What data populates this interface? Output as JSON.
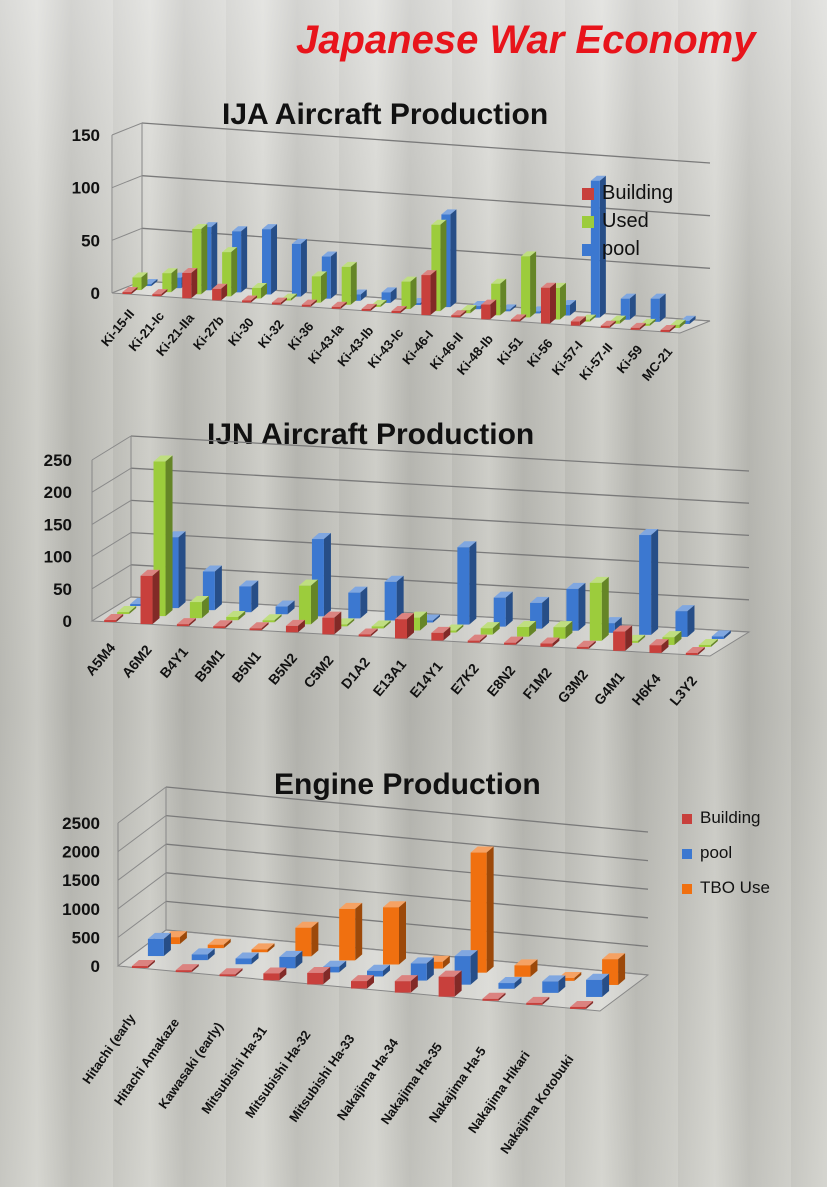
{
  "page_title": "Japanese War Economy",
  "colors": {
    "building": "#c8403c",
    "used": "#9ccc3c",
    "pool": "#3c78d0",
    "tbo": "#f07010",
    "title": "#e8141b"
  },
  "chart_data": [
    {
      "type": "bar",
      "title": "IJA Aircraft Production",
      "categories": [
        "Ki-15-II",
        "Ki-21-Ic",
        "Ki-21-IIa",
        "Ki-27b",
        "Ki-30",
        "Ki-32",
        "Ki-36",
        "Ki-43-Ia",
        "Ki-43-Ib",
        "Ki-43-Ic",
        "Ki-46-I",
        "Ki-46-II",
        "Ki-48-Ib",
        "Ki-51",
        "Ki-56",
        "Ki-57-I",
        "Ki-57-II",
        "Ki-59",
        "MC-21"
      ],
      "series": [
        {
          "name": "Building",
          "values": [
            0,
            0,
            24,
            11,
            0,
            0,
            0,
            0,
            0,
            0,
            38,
            0,
            14,
            0,
            34,
            4,
            0,
            0,
            0
          ]
        },
        {
          "name": "Used",
          "values": [
            12,
            18,
            62,
            42,
            10,
            0,
            25,
            36,
            0,
            26,
            82,
            3,
            30,
            58,
            30,
            0,
            3,
            0,
            3
          ]
        },
        {
          "name": "pool",
          "values": [
            0,
            10,
            60,
            58,
            62,
            50,
            40,
            6,
            10,
            0,
            88,
            3,
            0,
            0,
            10,
            130,
            20,
            22,
            3
          ]
        }
      ],
      "ylim": [
        0,
        150
      ],
      "yticks": [
        "150",
        "100",
        "50",
        "0"
      ],
      "legend": "right"
    },
    {
      "type": "bar",
      "title": "IJN Aircraft Production",
      "categories": [
        "A5M4",
        "A6M2",
        "B4Y1",
        "B5M1",
        "B5N1",
        "B5N2",
        "C5M2",
        "D1A2",
        "E13A1",
        "E14Y1",
        "E7K2",
        "E8N2",
        "F1M2",
        "G3M2",
        "G4M1",
        "H6K4",
        "L3Y2"
      ],
      "series": [
        {
          "name": "Building",
          "values": [
            0,
            75,
            0,
            0,
            0,
            10,
            26,
            0,
            30,
            12,
            0,
            0,
            5,
            0,
            30,
            12,
            0
          ]
        },
        {
          "name": "Used",
          "values": [
            0,
            240,
            25,
            5,
            2,
            60,
            2,
            0,
            20,
            0,
            10,
            15,
            18,
            90,
            0,
            12,
            0
          ]
        },
        {
          "name": "pool",
          "values": [
            0,
            110,
            60,
            40,
            12,
            120,
            40,
            60,
            0,
            120,
            45,
            40,
            65,
            15,
            155,
            40,
            4
          ]
        }
      ],
      "ylim": [
        0,
        250
      ],
      "yticks": [
        "250",
        "200",
        "150",
        "100",
        "50",
        "0"
      ],
      "legend": "none"
    },
    {
      "type": "bar",
      "title": "Engine Production",
      "categories": [
        "Hitachi (early",
        "Hitachi Amakaze",
        "Kawasaki (early)",
        "Mitsubishi Ha-31",
        "Mitsubishi Ha-32",
        "Mitsubishi Ha-33",
        "Nakajima Ha-34",
        "Nakajima Ha-35",
        "Nakajima Ha-5",
        "Nakajima Hikari",
        "Nakajima Kotobuki"
      ],
      "series": [
        {
          "name": "Building",
          "values": [
            0,
            0,
            0,
            120,
            200,
            130,
            200,
            350,
            0,
            0,
            0
          ]
        },
        {
          "name": "pool",
          "values": [
            300,
            100,
            100,
            200,
            100,
            100,
            300,
            500,
            100,
            200,
            300
          ]
        },
        {
          "name": "TBO Use",
          "values": [
            120,
            60,
            50,
            500,
            900,
            1000,
            120,
            2100,
            200,
            50,
            450
          ]
        }
      ],
      "ylim": [
        0,
        2500
      ],
      "yticks": [
        "2500",
        "2000",
        "1500",
        "1000",
        "500",
        "0"
      ],
      "legend": "top-right"
    }
  ]
}
